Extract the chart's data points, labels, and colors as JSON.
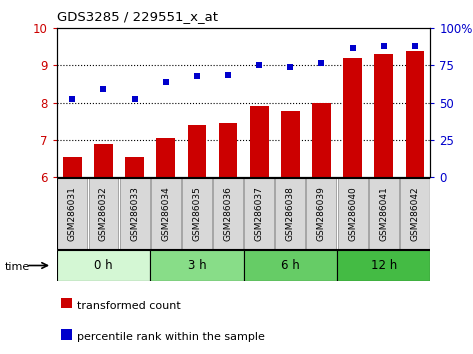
{
  "title": "GDS3285 / 229551_x_at",
  "categories": [
    "GSM286031",
    "GSM286032",
    "GSM286033",
    "GSM286034",
    "GSM286035",
    "GSM286036",
    "GSM286037",
    "GSM286038",
    "GSM286039",
    "GSM286040",
    "GSM286041",
    "GSM286042"
  ],
  "bar_values": [
    6.55,
    6.9,
    6.55,
    7.05,
    7.4,
    7.45,
    7.9,
    7.78,
    8.0,
    9.2,
    9.3,
    9.38
  ],
  "scatter_values_left": [
    8.1,
    8.38,
    8.1,
    8.55,
    8.72,
    8.75,
    9.0,
    8.95,
    9.08,
    9.48,
    9.52,
    9.52
  ],
  "ylim_left": [
    6,
    10
  ],
  "ylim_right": [
    0,
    100
  ],
  "bar_color": "#cc0000",
  "scatter_color": "#0000cc",
  "left_yticks": [
    6,
    7,
    8,
    9,
    10
  ],
  "right_yticks": [
    0,
    25,
    50,
    75,
    100
  ],
  "right_yticklabels": [
    "0",
    "25",
    "50",
    "75",
    "100%"
  ],
  "time_groups": [
    {
      "label": "0 h",
      "start": 0,
      "end": 3,
      "color": "#d4f7d4"
    },
    {
      "label": "3 h",
      "start": 3,
      "end": 6,
      "color": "#88dd88"
    },
    {
      "label": "6 h",
      "start": 6,
      "end": 9,
      "color": "#66cc66"
    },
    {
      "label": "12 h",
      "start": 9,
      "end": 12,
      "color": "#44bb44"
    }
  ],
  "legend_bar_label": "transformed count",
  "legend_scatter_label": "percentile rank within the sample",
  "xlabel_time": "time",
  "bg_color": "#ffffff",
  "grid_color": "#000000",
  "tick_label_color_left": "#cc0000",
  "tick_label_color_right": "#0000cc",
  "tick_bg_color": "#d8d8d8"
}
